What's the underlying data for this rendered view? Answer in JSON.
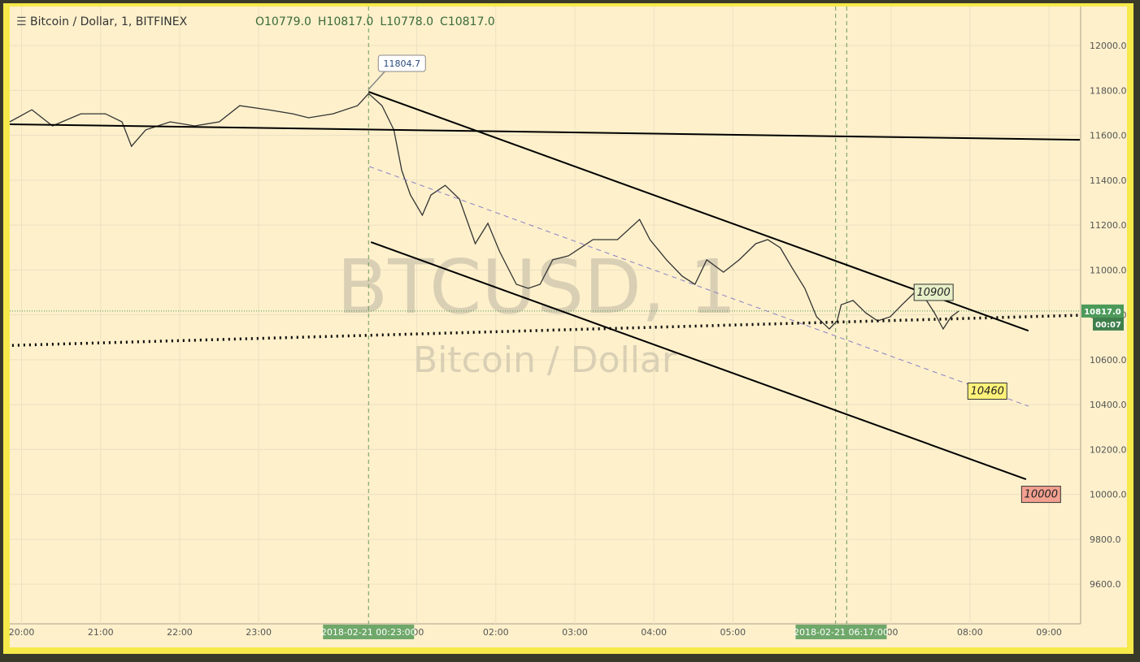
{
  "chart_data": {
    "type": "line",
    "title": "Bitcoin / Dollar, 1, BITFINEX",
    "ohlc": [
      "O10779.0",
      "H10817.0",
      "L10778.0",
      "C10817.0"
    ],
    "watermark": [
      "BTCUSD, 1",
      "Bitcoin / Dollar"
    ],
    "xlim": [
      -0.15,
      13.39
    ],
    "ylim": [
      9423,
      12174
    ],
    "xticks": [
      {
        "value": 0,
        "label": "20:00"
      },
      {
        "value": 1,
        "label": "21:00"
      },
      {
        "value": 2,
        "label": "22:00"
      },
      {
        "value": 3,
        "label": "23:00"
      },
      {
        "value": 5,
        "label": ":00"
      },
      {
        "value": 6,
        "label": "02:00"
      },
      {
        "value": 7,
        "label": "03:00"
      },
      {
        "value": 8,
        "label": "04:00"
      },
      {
        "value": 9,
        "label": "05:00"
      },
      {
        "value": 11,
        "label": ":00"
      },
      {
        "value": 12,
        "label": "08:00"
      },
      {
        "value": 13,
        "label": "09:00"
      }
    ],
    "yticks": [
      {
        "value": 9600,
        "label": "9600.0"
      },
      {
        "value": 9800,
        "label": "9800.0"
      },
      {
        "value": 10000,
        "label": "10000.0"
      },
      {
        "value": 10200,
        "label": "10200.0"
      },
      {
        "value": 10400,
        "label": "10400.0"
      },
      {
        "value": 10600,
        "label": "10600.0"
      },
      {
        "value": 10800,
        "label": "10800.0"
      },
      {
        "value": 11000,
        "label": "11000.0"
      },
      {
        "value": 11200,
        "label": "11200.0"
      },
      {
        "value": 11400,
        "label": "11400.0"
      },
      {
        "value": 11600,
        "label": "11600.0"
      },
      {
        "value": 11800,
        "label": "11800.0"
      },
      {
        "value": 12000,
        "label": "12000.0"
      }
    ],
    "grid": true,
    "series": [
      {
        "color": "#333333",
        "x": [
          -0.15,
          0.13,
          0.39,
          0.75,
          1.06,
          1.27,
          1.39,
          1.57,
          1.88,
          2.19,
          2.5,
          2.76,
          3.12,
          3.43,
          3.63,
          3.94,
          4.25,
          4.39,
          4.56,
          4.71,
          4.81,
          4.92,
          5.07,
          5.18,
          5.36,
          5.54,
          5.74,
          5.9,
          6.05,
          6.26,
          6.41,
          6.56,
          6.72,
          6.92,
          7.23,
          7.54,
          7.82,
          7.95,
          8.16,
          8.36,
          8.52,
          8.67,
          8.88,
          9.08,
          9.29,
          9.44,
          9.6,
          9.75,
          9.91,
          10.06,
          10.22,
          10.32,
          10.37,
          10.52,
          10.68,
          10.83,
          10.99,
          11.14,
          11.3,
          11.45,
          11.55,
          11.66,
          11.76,
          11.86
        ],
        "values": [
          11660,
          11714,
          11642,
          11696,
          11696,
          11660,
          11551,
          11624,
          11660,
          11642,
          11660,
          11732,
          11714,
          11696,
          11678,
          11696,
          11732,
          11786,
          11732,
          11624,
          11443,
          11334,
          11244,
          11334,
          11377,
          11316,
          11117,
          11208,
          11081,
          10936,
          10918,
          10936,
          11045,
          11063,
          11135,
          11135,
          11225,
          11135,
          11045,
          10972,
          10936,
          11045,
          10990,
          11045,
          11117,
          11135,
          11099,
          11009,
          10918,
          10791,
          10737,
          10773,
          10845,
          10864,
          10809,
          10773,
          10791,
          10845,
          10900,
          10864,
          10809,
          10737,
          10791,
          10817
        ]
      }
    ],
    "trend_lines": [
      {
        "style": "solid",
        "x": [
          -0.15,
          13.39
        ],
        "y": [
          11649,
          11580
        ]
      },
      {
        "style": "solid",
        "x": [
          4.39,
          12.74
        ],
        "y": [
          11794,
          10729
        ]
      },
      {
        "style": "solid",
        "x": [
          4.42,
          12.71
        ],
        "y": [
          11124,
          10067
        ]
      },
      {
        "style": "dashed",
        "color": "#8a7fc8",
        "x": [
          4.4,
          12.74
        ],
        "y": [
          11461,
          10393
        ]
      },
      {
        "style": "dotted",
        "x": [
          -0.12,
          13.39
        ],
        "y": [
          10664,
          10798
        ]
      }
    ],
    "vlines": [
      4.39,
      10.3,
      10.44
    ],
    "last_price": {
      "value": 10817,
      "label": "10817.0",
      "countdown": "00:07"
    },
    "annotations": [
      {
        "text": "11804.7",
        "x": 4.39,
        "y": 11804.7,
        "bg": "#ffffff"
      },
      {
        "text": "10900",
        "x": 11.55,
        "y": 10900,
        "bg": "#e6efc8"
      },
      {
        "text": "10460",
        "x": 12.23,
        "y": 10460,
        "bg": "#fff27a"
      },
      {
        "text": "10000",
        "x": 12.91,
        "y": 10000,
        "bg": "#f2a090"
      }
    ],
    "time_labels": [
      {
        "x": 4.39,
        "label": "2018-02-21 00:23:00"
      },
      {
        "x": 10.37,
        "label": "2018-02-21 06:17:00"
      }
    ]
  }
}
